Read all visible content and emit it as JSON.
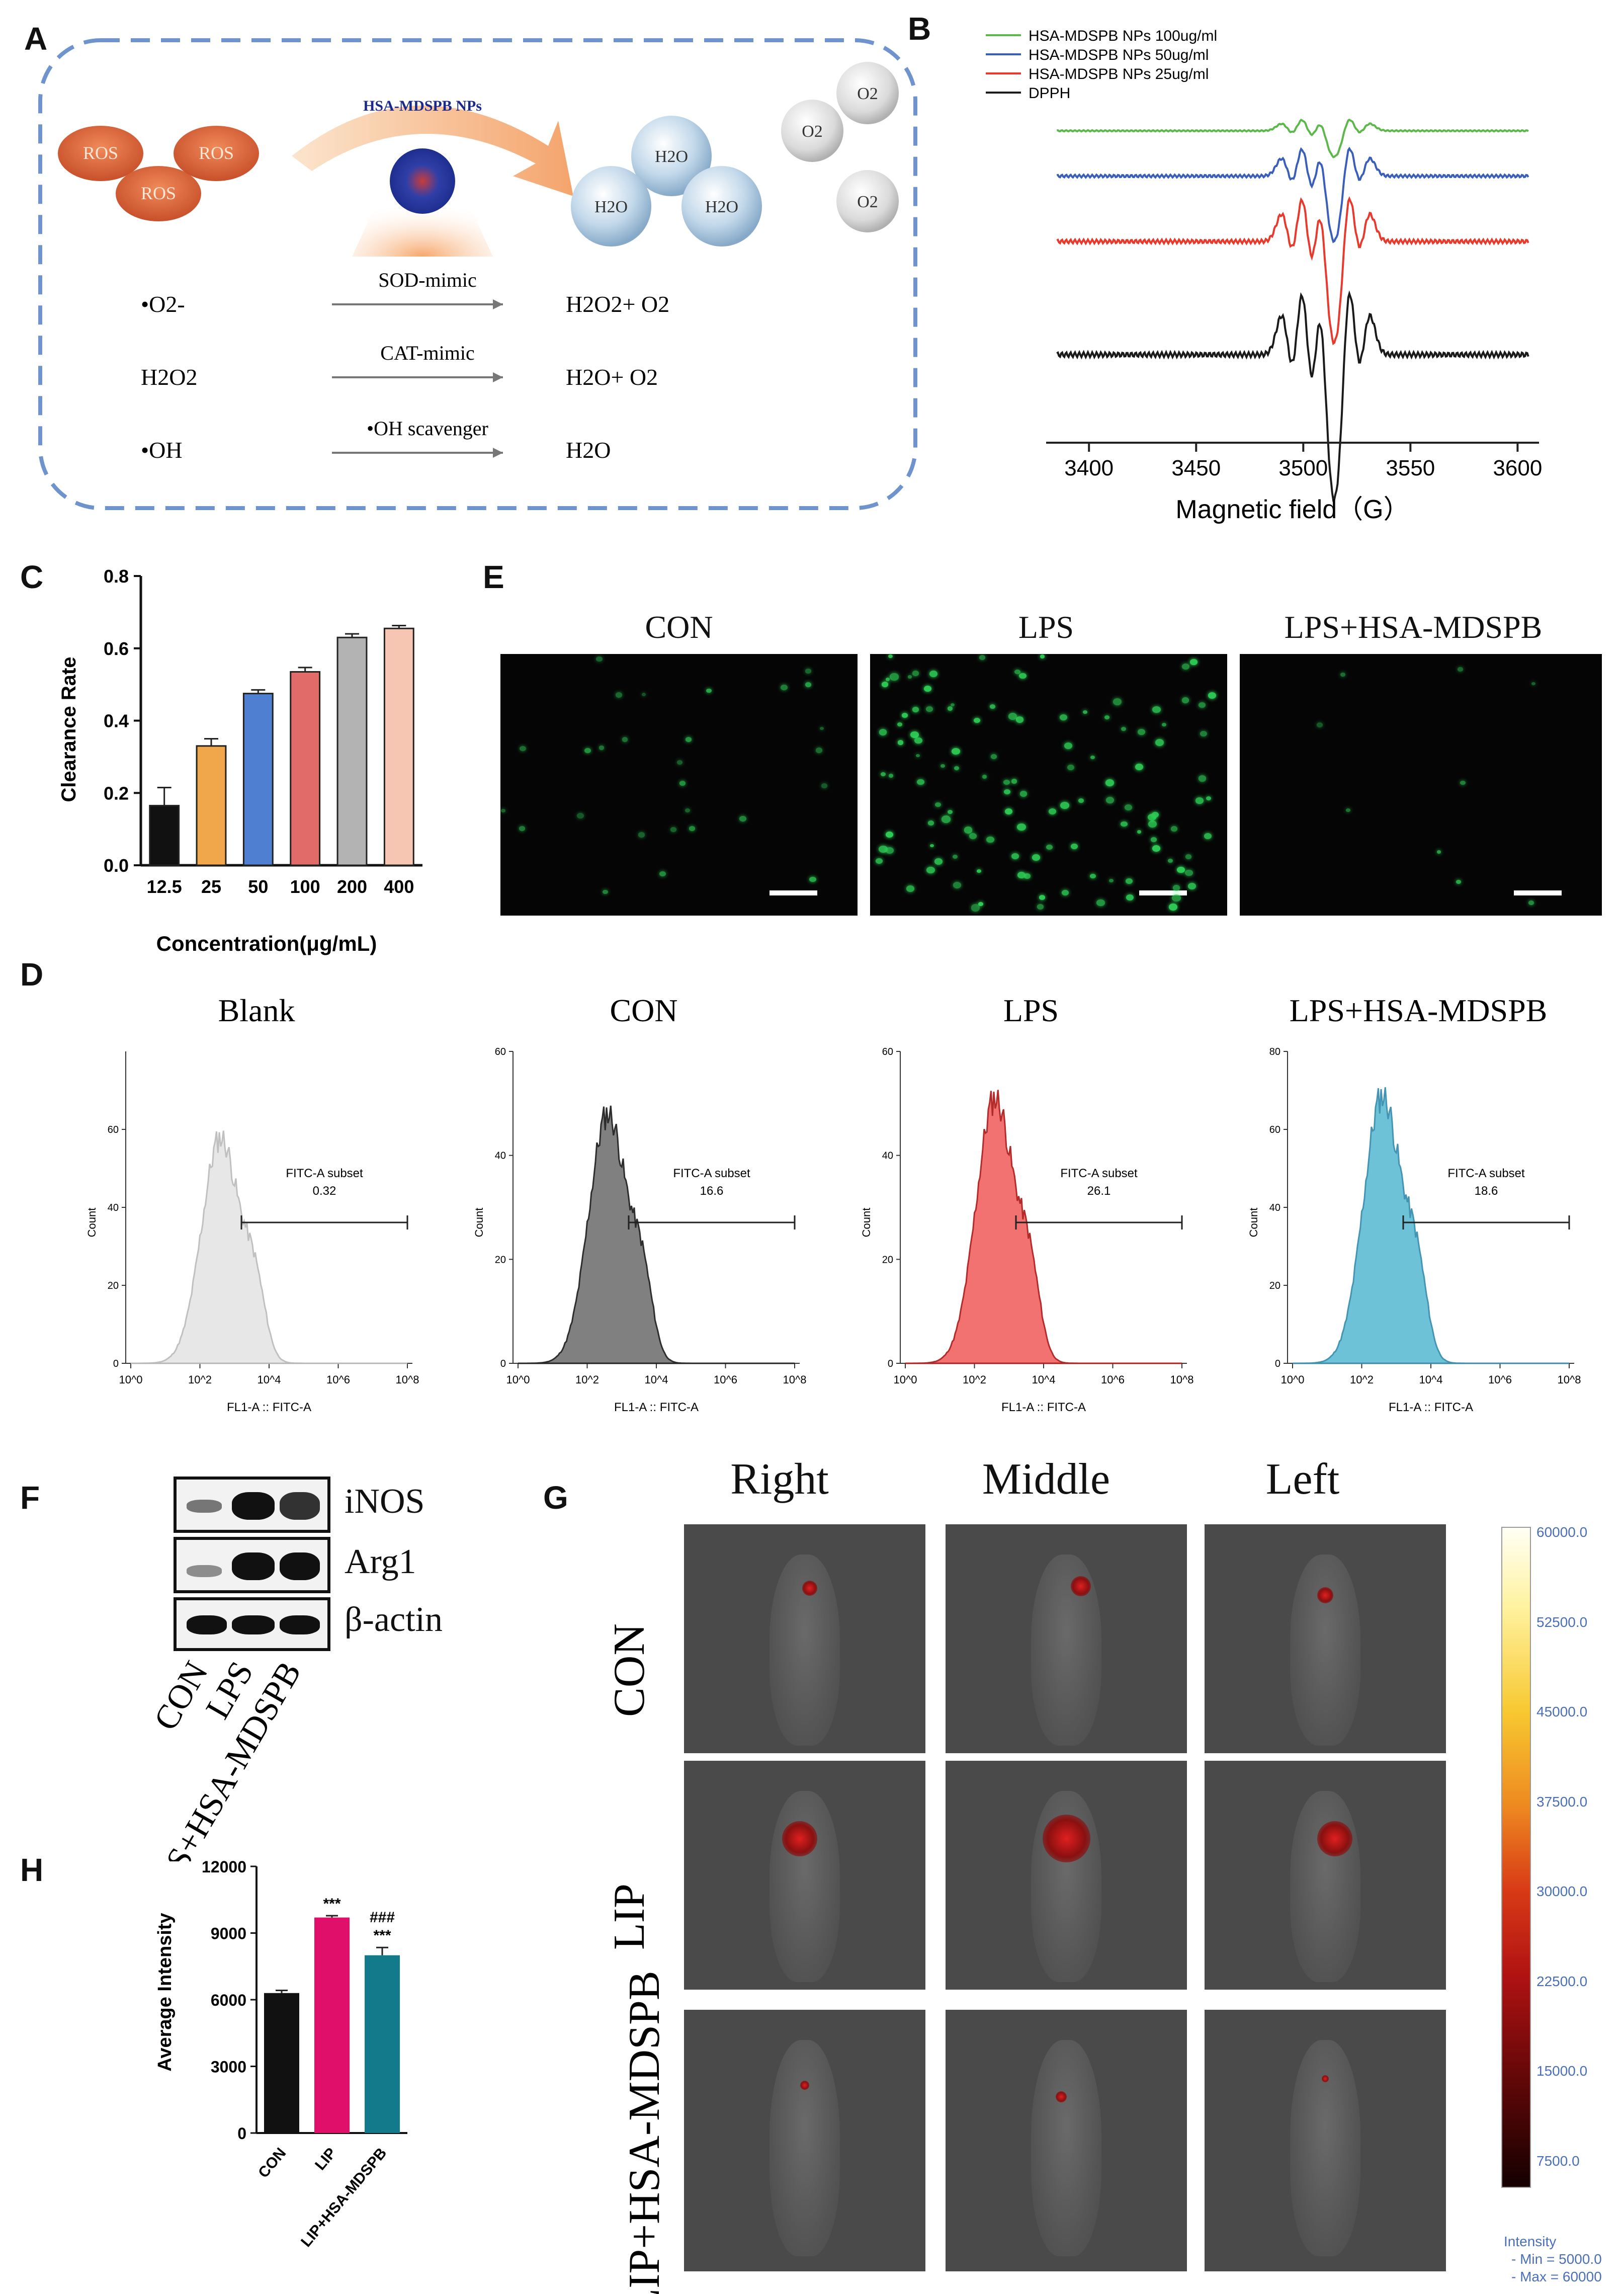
{
  "panel_labels": {
    "a": "A",
    "b": "B",
    "c": "C",
    "d": "D",
    "e": "E",
    "f": "F",
    "g": "G",
    "h": "H"
  },
  "panelA": {
    "nps_label": "HSA-MDSPB NPs",
    "ros_label": "ROS",
    "water_label": "H2O",
    "oxygen_label": "O2",
    "rows": [
      {
        "reactant": "•O2-",
        "enzyme": "SOD-mimic",
        "product": "H2O2+ O2"
      },
      {
        "reactant": "H2O2",
        "enzyme": "CAT-mimic",
        "product": "H2O+ O2"
      },
      {
        "reactant": "•OH",
        "enzyme": "•OH scavenger",
        "product": "H2O"
      }
    ]
  },
  "chart_data": [
    {
      "panel": "B",
      "type": "line",
      "title": "",
      "xlabel": "Magnetic field（G）",
      "ylabel": "",
      "xlim": [
        3380,
        3610
      ],
      "xticks": [
        3400,
        3450,
        3500,
        3550,
        3600
      ],
      "series": [
        {
          "name": "HSA-MDSPB NPs 100ug/ml",
          "color": "#5cb84a",
          "amplitude": 0.18
        },
        {
          "name": "HSA-MDSPB NPs 50ug/ml",
          "color": "#3a5fb8",
          "amplitude": 0.45
        },
        {
          "name": "HSA-MDSPB NPs 25ug/ml",
          "color": "#e8392d",
          "amplitude": 0.7
        },
        {
          "name": "DPPH",
          "color": "#1a1a1a",
          "amplitude": 1.0
        }
      ],
      "peak_centers_G": [
        3493,
        3502,
        3510,
        3519,
        3528
      ],
      "peak_weights": [
        0.45,
        0.9,
        1.0,
        -0.95,
        -0.45
      ]
    },
    {
      "panel": "C",
      "type": "bar",
      "title": "",
      "xlabel": "Concentration(μg/mL)",
      "ylabel": "Clearance Rate",
      "ylim": [
        0.0,
        0.8
      ],
      "yticks": [
        "0.0",
        "0.2",
        "0.4",
        "0.6",
        "0.8"
      ],
      "categories": [
        "12.5",
        "25",
        "50",
        "100",
        "200",
        "400"
      ],
      "values": [
        0.165,
        0.33,
        0.475,
        0.535,
        0.63,
        0.655
      ],
      "errors": [
        0.05,
        0.02,
        0.01,
        0.012,
        0.01,
        0.008
      ],
      "colors": [
        "#111111",
        "#f0a64a",
        "#4f7fd0",
        "#e06b68",
        "#b3b3b3",
        "#f7c6b2"
      ]
    },
    {
      "panel": "D",
      "type": "area",
      "xlabel": "FL1-A :: FITC-A",
      "ylabel": "Count",
      "xticks": [
        "10^0",
        "10^2",
        "10^4",
        "10^6",
        "10^8"
      ],
      "gate_label": "FITC-A subset",
      "histograms": [
        {
          "title": "Blank",
          "gate_value": "0.32",
          "ymax": 80,
          "yticks": [
            "0",
            "20",
            "40",
            "60"
          ],
          "peak": 59,
          "color": "#e6e6e6"
        },
        {
          "title": "CON",
          "gate_value": "16.6",
          "ymax": 60,
          "yticks": [
            "0",
            "20",
            "40",
            "60"
          ],
          "peak": 49,
          "color": "#7a7a7a"
        },
        {
          "title": "LPS",
          "gate_value": "26.1",
          "ymax": 60,
          "yticks": [
            "0",
            "20",
            "40",
            "60"
          ],
          "peak": 52,
          "color": "#f26a6a"
        },
        {
          "title": "LPS+HSA-MDSPB",
          "gate_value": "18.6",
          "ymax": 80,
          "yticks": [
            "0",
            "20",
            "40",
            "60",
            "80"
          ],
          "peak": 70,
          "color": "#66bfd6"
        }
      ]
    },
    {
      "panel": "H",
      "type": "bar",
      "title": "",
      "xlabel": "",
      "ylabel": "Average Intensity",
      "ylim": [
        0,
        12000
      ],
      "yticks": [
        "0",
        "3000",
        "6000",
        "9000",
        "12000"
      ],
      "categories": [
        "CON",
        "LIP",
        "LIP+HSA-MDSPB"
      ],
      "values": [
        6300,
        9700,
        8000
      ],
      "errors": [
        120,
        80,
        350
      ],
      "colors": [
        "#111111",
        "#e0106a",
        "#127a8a"
      ],
      "annotations": [
        "",
        "***",
        "###\n***"
      ]
    }
  ],
  "panelE": {
    "titles": [
      "CON",
      "LPS",
      "LPS+HSA-MDSPB"
    ]
  },
  "panelF": {
    "proteins": [
      "iNOS",
      "Arg1",
      "β-actin"
    ],
    "lanes": [
      "CON",
      "LPS",
      "LPS+HSA-MDSPB"
    ]
  },
  "panelG": {
    "columns": [
      "Right",
      "Middle",
      "Left"
    ],
    "rows": [
      "CON",
      "LIP",
      "LIP+HSA-MDSPB"
    ],
    "scale_ticks": [
      "60000.0",
      "52500.0",
      "45000.0",
      "37500.0",
      "30000.0",
      "22500.0",
      "15000.0",
      "7500.0"
    ],
    "scale_title": "Intensity",
    "scale_min": "- Min = 5000.0",
    "scale_max": "- Max = 60000"
  }
}
